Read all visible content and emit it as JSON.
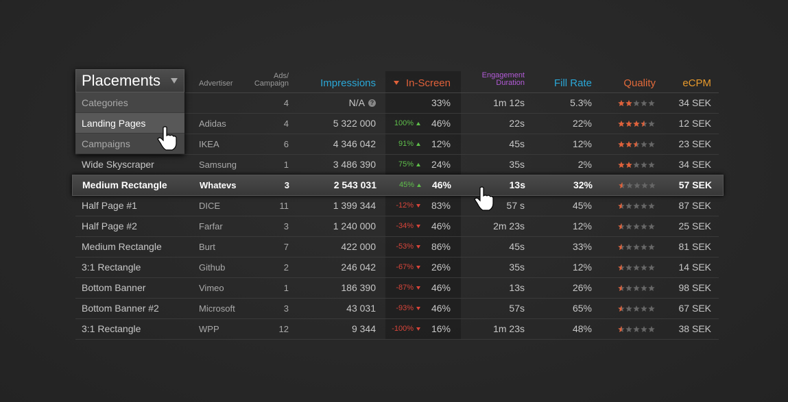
{
  "dropdown": {
    "title": "Placements",
    "items": [
      "Categories",
      "Landing Pages",
      "Campaigns"
    ]
  },
  "table": {
    "columns": {
      "advertiser": "Advertiser",
      "ads": [
        "Ads/",
        "Campaign"
      ],
      "impressions": "Impressions",
      "in_screen": "In-Screen",
      "duration": [
        "Engagement",
        "Duration"
      ],
      "fill_rate": "Fill Rate",
      "quality": "Quality",
      "ecpm": "eCPM"
    },
    "rows": [
      {
        "ads": "4",
        "impressions": "N/A",
        "in_screen": "33%",
        "duration": "1m 12s",
        "fill_rate": "5.3%",
        "quality": 2,
        "ecpm": "34 SEK"
      },
      {
        "advertiser": "Adidas",
        "ads": "4",
        "impressions": "5 322 000",
        "change": "100%",
        "in_screen": "46%",
        "duration": "22s",
        "fill_rate": "22%",
        "quality": 3.5,
        "ecpm": "12 SEK"
      },
      {
        "advertiser": "IKEA",
        "ads": "6",
        "impressions": "4 346 042",
        "change": "91%",
        "in_screen": "12%",
        "duration": "45s",
        "fill_rate": "12%",
        "quality": 2.5,
        "ecpm": "23 SEK"
      },
      {
        "placement": "Wide Skyscraper",
        "advertiser": "Samsung",
        "ads": "1",
        "impressions": "3 486 390",
        "change": "75%",
        "in_screen": "24%",
        "duration": "35s",
        "fill_rate": "2%",
        "quality": 2,
        "ecpm": "34 SEK"
      },
      {
        "placement": "Medium Rectangle",
        "advertiser": "Whatevs",
        "ads": "3",
        "impressions": "2 543 031",
        "change": "45%",
        "in_screen": "46%",
        "duration": "13s",
        "fill_rate": "32%",
        "quality": 0.5,
        "ecpm": "57 SEK"
      },
      {
        "placement": "Half Page #1",
        "advertiser": "DICE",
        "ads": "11",
        "impressions": "1 399 344",
        "change": "-12%",
        "in_screen": "83%",
        "duration": "57 s",
        "fill_rate": "45%",
        "quality": 0.5,
        "ecpm": "87 SEK"
      },
      {
        "placement": "Half Page #2",
        "advertiser": "Farfar",
        "ads": "3",
        "impressions": "1 240 000",
        "change": "-34%",
        "in_screen": "46%",
        "duration": "2m 23s",
        "fill_rate": "12%",
        "quality": 0.5,
        "ecpm": "25 SEK"
      },
      {
        "placement": "Medium Rectangle",
        "advertiser": "Burt",
        "ads": "7",
        "impressions": "422 000",
        "change": "-53%",
        "in_screen": "86%",
        "duration": "45s",
        "fill_rate": "33%",
        "quality": 0.5,
        "ecpm": "81 SEK"
      },
      {
        "placement": "3:1 Rectangle",
        "advertiser": "Github",
        "ads": "2",
        "impressions": "246 042",
        "change": "-67%",
        "in_screen": "26%",
        "duration": "35s",
        "fill_rate": "12%",
        "quality": 0.5,
        "ecpm": "14 SEK"
      },
      {
        "placement": "Bottom Banner",
        "advertiser": "Vimeo",
        "ads": "1",
        "impressions": "186 390",
        "change": "-87%",
        "in_screen": "46%",
        "duration": "13s",
        "fill_rate": "26%",
        "quality": 0.5,
        "ecpm": "98 SEK"
      },
      {
        "placement": "Bottom Banner #2",
        "advertiser": "Microsoft",
        "ads": "3",
        "impressions": "43 031",
        "change": "-93%",
        "in_screen": "46%",
        "duration": "57s",
        "fill_rate": "65%",
        "quality": 0.5,
        "ecpm": "67 SEK"
      },
      {
        "placement": "3:1 Rectangle",
        "advertiser": "WPP",
        "ads": "12",
        "impressions": "9 344",
        "change": "-100%",
        "in_screen": "16%",
        "duration": "1m 23s",
        "fill_rate": "48%",
        "quality": 0.5,
        "ecpm": "38 SEK"
      }
    ]
  }
}
